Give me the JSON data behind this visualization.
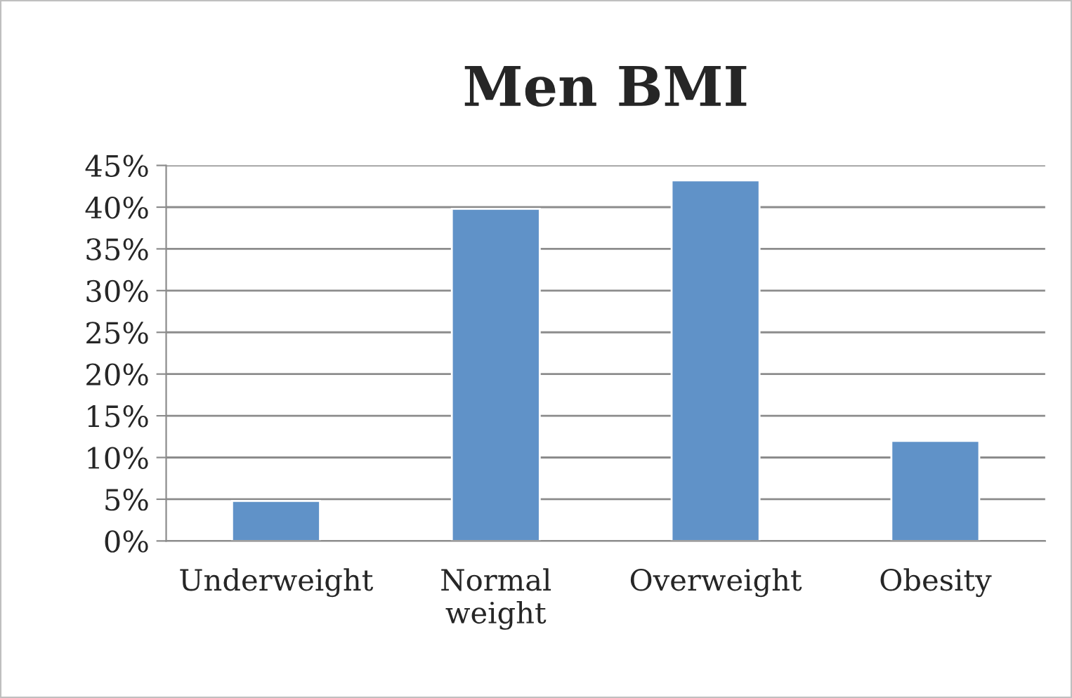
{
  "chart_data": {
    "type": "bar",
    "title": "Men BMI",
    "categories": [
      "Underweight",
      "Normal weight",
      "Overweight",
      "Obesity"
    ],
    "values": [
      4.8,
      39.8,
      43.2,
      12.0
    ],
    "color": "#6092c8",
    "ylim": [
      0,
      45
    ],
    "yticks": [
      {
        "value": 0,
        "label": "0%"
      },
      {
        "value": 5,
        "label": "5%"
      },
      {
        "value": 10,
        "label": "10%"
      },
      {
        "value": 15,
        "label": "15%"
      },
      {
        "value": 20,
        "label": "20%"
      },
      {
        "value": 25,
        "label": "25%"
      },
      {
        "value": 30,
        "label": "30%"
      },
      {
        "value": 35,
        "label": "35%"
      },
      {
        "value": 40,
        "label": "40%"
      },
      {
        "value": 45,
        "label": "45%"
      }
    ],
    "grid": "y",
    "legend": false
  }
}
